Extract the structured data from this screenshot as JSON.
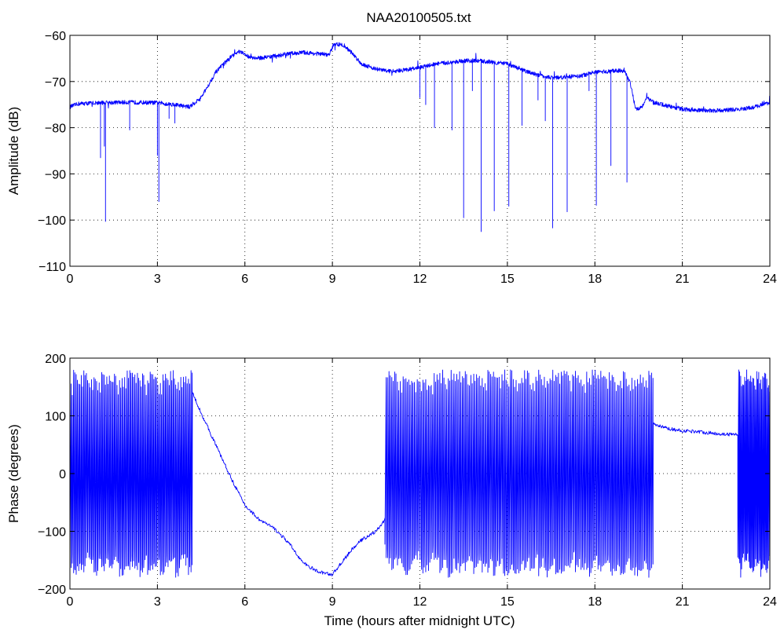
{
  "figure_title": "NAA20100505.txt",
  "colors": {
    "series": "#0000ff",
    "axes": "#000000",
    "background": "#ffffff"
  },
  "chart_data": [
    {
      "type": "line",
      "title": "NAA20100505.txt",
      "xlabel": "",
      "ylabel": "Amplitude (dB)",
      "xlim": [
        0,
        24
      ],
      "ylim": [
        -110,
        -60
      ],
      "xticks": [
        0,
        3,
        6,
        9,
        12,
        15,
        18,
        21,
        24
      ],
      "yticks": [
        -110,
        -100,
        -90,
        -80,
        -70,
        -60
      ],
      "grid": true,
      "legend": "none",
      "series": [
        {
          "baseline": [
            [
              0,
              -75.5
            ],
            [
              0.3,
              -74.8
            ],
            [
              1,
              -74.6
            ],
            [
              2,
              -74.5
            ],
            [
              3,
              -74.6
            ],
            [
              3.6,
              -75
            ],
            [
              4.1,
              -75.5
            ],
            [
              4.5,
              -73.5
            ],
            [
              5,
              -68
            ],
            [
              5.5,
              -64.8
            ],
            [
              5.8,
              -63.5
            ],
            [
              6.1,
              -64.5
            ],
            [
              6.4,
              -65
            ],
            [
              7,
              -64.5
            ],
            [
              7.5,
              -64
            ],
            [
              8,
              -63.7
            ],
            [
              8.5,
              -64
            ],
            [
              8.9,
              -64.2
            ],
            [
              9.05,
              -61.8
            ],
            [
              9.4,
              -62.2
            ],
            [
              9.7,
              -64
            ],
            [
              10,
              -66.2
            ],
            [
              10.5,
              -67.3
            ],
            [
              11,
              -67.8
            ],
            [
              11.5,
              -67.5
            ],
            [
              12,
              -67
            ],
            [
              12.5,
              -66.2
            ],
            [
              13,
              -65.9
            ],
            [
              13.5,
              -65.5
            ],
            [
              14,
              -65.5
            ],
            [
              14.5,
              -65.8
            ],
            [
              15,
              -66.2
            ],
            [
              15.5,
              -67.5
            ],
            [
              16,
              -68.5
            ],
            [
              16.5,
              -69.2
            ],
            [
              17,
              -69
            ],
            [
              17.5,
              -68.8
            ],
            [
              18,
              -68
            ],
            [
              18.5,
              -67.8
            ],
            [
              19,
              -67.5
            ],
            [
              19.2,
              -70
            ],
            [
              19.4,
              -76
            ],
            [
              19.6,
              -75.5
            ],
            [
              19.8,
              -73.5
            ],
            [
              20,
              -74.5
            ],
            [
              20.5,
              -75.3
            ],
            [
              21,
              -76
            ],
            [
              21.5,
              -76.2
            ],
            [
              22,
              -76.3
            ],
            [
              22.5,
              -76.2
            ],
            [
              23,
              -76
            ],
            [
              23.5,
              -75.5
            ],
            [
              24,
              -74.5
            ]
          ],
          "noise_db": 0.45,
          "dips": [
            [
              1.05,
              -86.5
            ],
            [
              1.18,
              -84
            ],
            [
              1.22,
              -100.3
            ],
            [
              2.05,
              -80.5
            ],
            [
              3.0,
              -86
            ],
            [
              3.05,
              -96
            ],
            [
              3.4,
              -78
            ],
            [
              3.6,
              -79
            ],
            [
              12.0,
              -73.5
            ],
            [
              12.2,
              -75
            ],
            [
              12.5,
              -80
            ],
            [
              13.1,
              -80.5
            ],
            [
              13.5,
              -99.5
            ],
            [
              13.8,
              -72
            ],
            [
              14.1,
              -102.5
            ],
            [
              14.55,
              -98
            ],
            [
              15.05,
              -97
            ],
            [
              15.5,
              -79.5
            ],
            [
              16.05,
              -74
            ],
            [
              16.3,
              -78.5
            ],
            [
              16.55,
              -101.7
            ],
            [
              17.05,
              -98.2
            ],
            [
              17.8,
              -72
            ],
            [
              18.05,
              -96.8
            ],
            [
              18.55,
              -88.2
            ],
            [
              19.1,
              -91.8
            ]
          ]
        }
      ]
    },
    {
      "type": "line",
      "title": "",
      "xlabel": "Time (hours after midnight UTC)",
      "ylabel": "Phase (degrees)",
      "xlim": [
        0,
        24
      ],
      "ylim": [
        -200,
        200
      ],
      "xticks": [
        0,
        3,
        6,
        9,
        12,
        15,
        18,
        21,
        24
      ],
      "yticks": [
        -200,
        -100,
        0,
        100,
        200
      ],
      "grid": true,
      "legend": "none",
      "series": [
        {
          "wrap_segments": [
            [
              0,
              4.2,
              48
            ],
            [
              10.8,
              20.0,
              95
            ],
            [
              22.9,
              24,
              16
            ]
          ],
          "wrap_limits": [
            -180,
            180
          ],
          "smooth_segments": [
            [
              [
                4.2,
                140
              ],
              [
                4.5,
                105
              ],
              [
                5,
                50
              ],
              [
                5.5,
                -5
              ],
              [
                6,
                -55
              ],
              [
                6.5,
                -80
              ],
              [
                7,
                -95
              ],
              [
                7.5,
                -120
              ],
              [
                8,
                -155
              ],
              [
                8.5,
                -170
              ],
              [
                9,
                -175
              ],
              [
                9.3,
                -155
              ],
              [
                9.7,
                -130
              ],
              [
                10,
                -115
              ],
              [
                10.5,
                -100
              ],
              [
                10.8,
                -80
              ]
            ],
            [
              [
                20,
                85
              ],
              [
                20.5,
                78
              ],
              [
                21,
                74
              ],
              [
                21.5,
                73
              ],
              [
                22,
                70
              ],
              [
                22.5,
                68
              ],
              [
                22.9,
                68
              ]
            ]
          ],
          "noise_deg": 3
        }
      ]
    }
  ]
}
